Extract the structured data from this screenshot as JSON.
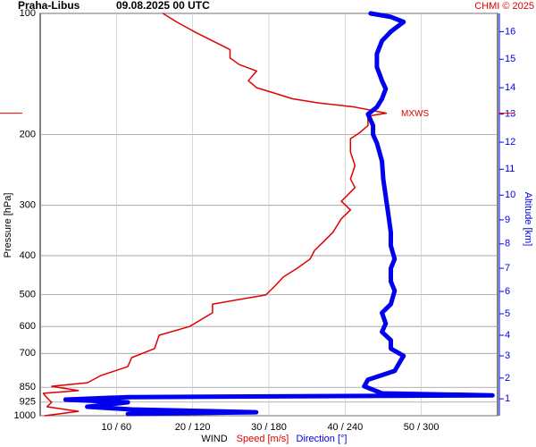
{
  "chart_data": {
    "type": "line",
    "title": "Praha-Libus",
    "subtitle": "09.08.2025 00 UTC",
    "credit": "CHMI © 2025",
    "y_label": "Pressure [hPa]",
    "y2_label": "Altitude [km]",
    "x_label": "WIND",
    "log_y": true,
    "grid": true,
    "ylim": [
      1000,
      100
    ],
    "yticks": [
      100,
      200,
      300,
      400,
      500,
      600,
      700,
      850,
      925,
      1000
    ],
    "xlim": [
      0,
      60
    ],
    "x2lim": [
      0,
      360
    ],
    "xticks": [
      {
        "value": 10,
        "label": "10 / 60"
      },
      {
        "value": 20,
        "label": "20 / 120"
      },
      {
        "value": 30,
        "label": "30 / 180"
      },
      {
        "value": 40,
        "label": "40 / 240"
      },
      {
        "value": 50,
        "label": "50 / 300"
      }
    ],
    "y2ticks": [
      1,
      2,
      3,
      4,
      5,
      6,
      7,
      8,
      9,
      10,
      11,
      12,
      13,
      14,
      15,
      16
    ],
    "y2tick_pressure": [
      908,
      806,
      710,
      631,
      558,
      491,
      430,
      374,
      326,
      283,
      244,
      209,
      178,
      153,
      130,
      111
    ],
    "max_wind": {
      "label": "MXWS",
      "pressure": 177,
      "color": "#e00000"
    },
    "series": [
      {
        "name": "Speed [m/s]",
        "color": "#e00000",
        "axis": "x",
        "width": 1.5,
        "levels": [
          1000,
          975,
          950,
          926,
          903,
          880,
          866,
          845,
          828,
          794,
          755,
          717,
          681,
          631,
          600,
          555,
          528,
          501,
          476,
          452,
          430,
          408,
          388,
          369,
          350,
          324,
          308,
          293,
          271,
          258,
          239,
          221,
          205,
          198,
          190,
          180,
          177,
          171,
          167,
          163,
          158,
          153,
          147,
          139,
          134,
          129,
          123,
          117,
          111,
          105,
          100
        ],
        "values": [
          0.6,
          5.0,
          0.9,
          1.5,
          0.9,
          0.4,
          5.0,
          1.5,
          6.2,
          8.0,
          11.5,
          12.0,
          15.0,
          15.6,
          19.6,
          22.6,
          22.6,
          29.6,
          30.8,
          31.9,
          33.7,
          35.4,
          36.0,
          37.2,
          38.4,
          39.5,
          40.7,
          39.5,
          41.3,
          40.7,
          41.3,
          40.7,
          40.7,
          41.9,
          43.0,
          43.0,
          45.4,
          41.3,
          36.6,
          33.1,
          30.8,
          28.4,
          27.3,
          28.4,
          26.1,
          24.9,
          24.9,
          22.6,
          20.2,
          17.9,
          16.1
        ]
      },
      {
        "name": "Direction [°]",
        "color": "#0000ee",
        "axis": "x2",
        "width": 5,
        "levels": [
          990,
          980,
          965,
          950,
          926,
          912,
          899,
          890,
          880,
          845,
          814,
          774,
          736,
          710,
          681,
          649,
          619,
          590,
          555,
          528,
          489,
          464,
          430,
          408,
          378,
          350,
          316,
          285,
          258,
          233,
          210,
          200,
          190,
          178,
          171,
          163,
          154,
          147,
          136,
          126,
          117,
          111,
          105,
          102,
          100
        ],
        "values": [
          69,
          170,
          72,
          37,
          69,
          20,
          69,
          356,
          269,
          255,
          258,
          279,
          283,
          286,
          276,
          276,
          269,
          272,
          269,
          276,
          279,
          276,
          276,
          279,
          276,
          276,
          274,
          272,
          270,
          269,
          265,
          262,
          262,
          258,
          265,
          269,
          272,
          269,
          265,
          265,
          269,
          276,
          286,
          276,
          260
        ]
      }
    ]
  }
}
